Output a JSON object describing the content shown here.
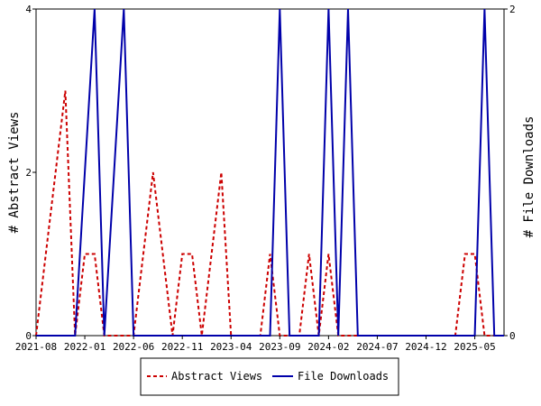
{
  "chart_data": {
    "type": "line",
    "x": [
      "2021-08",
      "2021-09",
      "2021-10",
      "2021-11",
      "2021-12",
      "2022-01",
      "2022-02",
      "2022-03",
      "2022-04",
      "2022-05",
      "2022-06",
      "2022-07",
      "2022-08",
      "2022-09",
      "2022-10",
      "2022-11",
      "2022-12",
      "2023-01",
      "2023-02",
      "2023-03",
      "2023-04",
      "2023-05",
      "2023-06",
      "2023-07",
      "2023-08",
      "2023-09",
      "2023-10",
      "2023-11",
      "2023-12",
      "2024-01",
      "2024-02",
      "2024-03",
      "2024-04",
      "2024-05",
      "2024-06",
      "2024-07",
      "2024-08",
      "2024-09",
      "2024-10",
      "2024-11",
      "2024-12",
      "2025-01",
      "2025-02",
      "2025-03",
      "2025-04",
      "2025-05",
      "2025-06",
      "2025-07",
      "2025-08"
    ],
    "x_tick_labels": [
      "2021-08",
      "2022-01",
      "2022-06",
      "2022-11",
      "2023-04",
      "2023-09",
      "2024-02",
      "2024-07",
      "2024-12",
      "2025-05"
    ],
    "series": [
      {
        "name": "Abstract Views",
        "axis": "left",
        "color": "#cc0000",
        "style": "dashed",
        "values": [
          0,
          1,
          2,
          3,
          0,
          1,
          1,
          0,
          0,
          0,
          0,
          1,
          2,
          1,
          0,
          1,
          1,
          0,
          1,
          2,
          0,
          0,
          0,
          0,
          1,
          0,
          0,
          0,
          1,
          0,
          1,
          0,
          0,
          0,
          0,
          0,
          0,
          0,
          0,
          0,
          0,
          0,
          0,
          0,
          1,
          1,
          0,
          0,
          0
        ]
      },
      {
        "name": "File Downloads",
        "axis": "right",
        "color": "#0000aa",
        "style": "solid",
        "values": [
          0,
          0,
          0,
          0,
          0,
          1,
          2,
          0,
          1,
          2,
          0,
          0,
          0,
          0,
          0,
          0,
          0,
          0,
          0,
          0,
          0,
          0,
          0,
          0,
          0,
          2,
          0,
          0,
          0,
          0,
          2,
          0,
          2,
          0,
          0,
          0,
          0,
          0,
          0,
          0,
          0,
          0,
          0,
          0,
          0,
          0,
          2,
          0,
          0
        ]
      }
    ],
    "ylabel": "# Abstract Views",
    "y2label": "# File Downloads",
    "ylim": [
      0,
      4
    ],
    "y2lim": [
      0,
      2
    ],
    "y_ticks": [
      0,
      2,
      4
    ],
    "y2_ticks": [
      0,
      2
    ],
    "legend_position": "bottom",
    "grid": false
  }
}
